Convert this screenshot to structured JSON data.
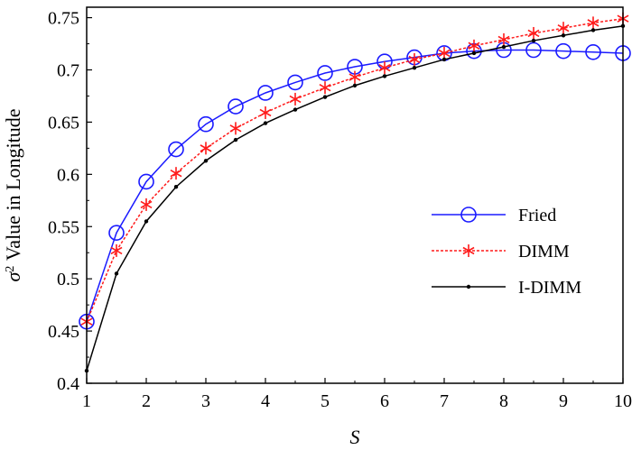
{
  "chart_data": {
    "type": "line",
    "xlabel": "S",
    "ylabel_symbol": "σ",
    "ylabel_sup": "2",
    "ylabel_rest": " Value in Longitude",
    "xlim": [
      1,
      10
    ],
    "ylim": [
      0.4,
      0.76
    ],
    "xticks": [
      "1",
      "2",
      "3",
      "4",
      "5",
      "6",
      "7",
      "8",
      "9",
      "10"
    ],
    "yticks": [
      "0.4",
      "0.45",
      "0.5",
      "0.55",
      "0.6",
      "0.65",
      "0.7",
      "0.75"
    ],
    "x": [
      1,
      1.5,
      2,
      2.5,
      3,
      3.5,
      4,
      4.5,
      5,
      5.5,
      6,
      6.5,
      7,
      7.5,
      8,
      8.5,
      9,
      9.5,
      10
    ],
    "series": [
      {
        "name": "Fried",
        "color": "#1a1aff",
        "marker": "circle",
        "dash": "solid",
        "values": [
          0.459,
          0.544,
          0.593,
          0.624,
          0.648,
          0.665,
          0.678,
          0.688,
          0.697,
          0.703,
          0.708,
          0.712,
          0.716,
          0.718,
          0.719,
          0.719,
          0.718,
          0.717,
          0.716
        ]
      },
      {
        "name": "DIMM",
        "color": "#ff1a1a",
        "marker": "asterisk",
        "dash": "dashed",
        "values": [
          0.459,
          0.527,
          0.571,
          0.601,
          0.625,
          0.644,
          0.659,
          0.672,
          0.683,
          0.693,
          0.702,
          0.71,
          0.716,
          0.723,
          0.729,
          0.735,
          0.74,
          0.745,
          0.749
        ]
      },
      {
        "name": "I-DIMM",
        "color": "#000000",
        "marker": "dot",
        "dash": "solid",
        "values": [
          0.412,
          0.505,
          0.555,
          0.588,
          0.613,
          0.633,
          0.649,
          0.662,
          0.674,
          0.685,
          0.694,
          0.702,
          0.71,
          0.716,
          0.722,
          0.728,
          0.733,
          0.738,
          0.742
        ]
      }
    ],
    "legend_position": "right",
    "grid": false
  }
}
